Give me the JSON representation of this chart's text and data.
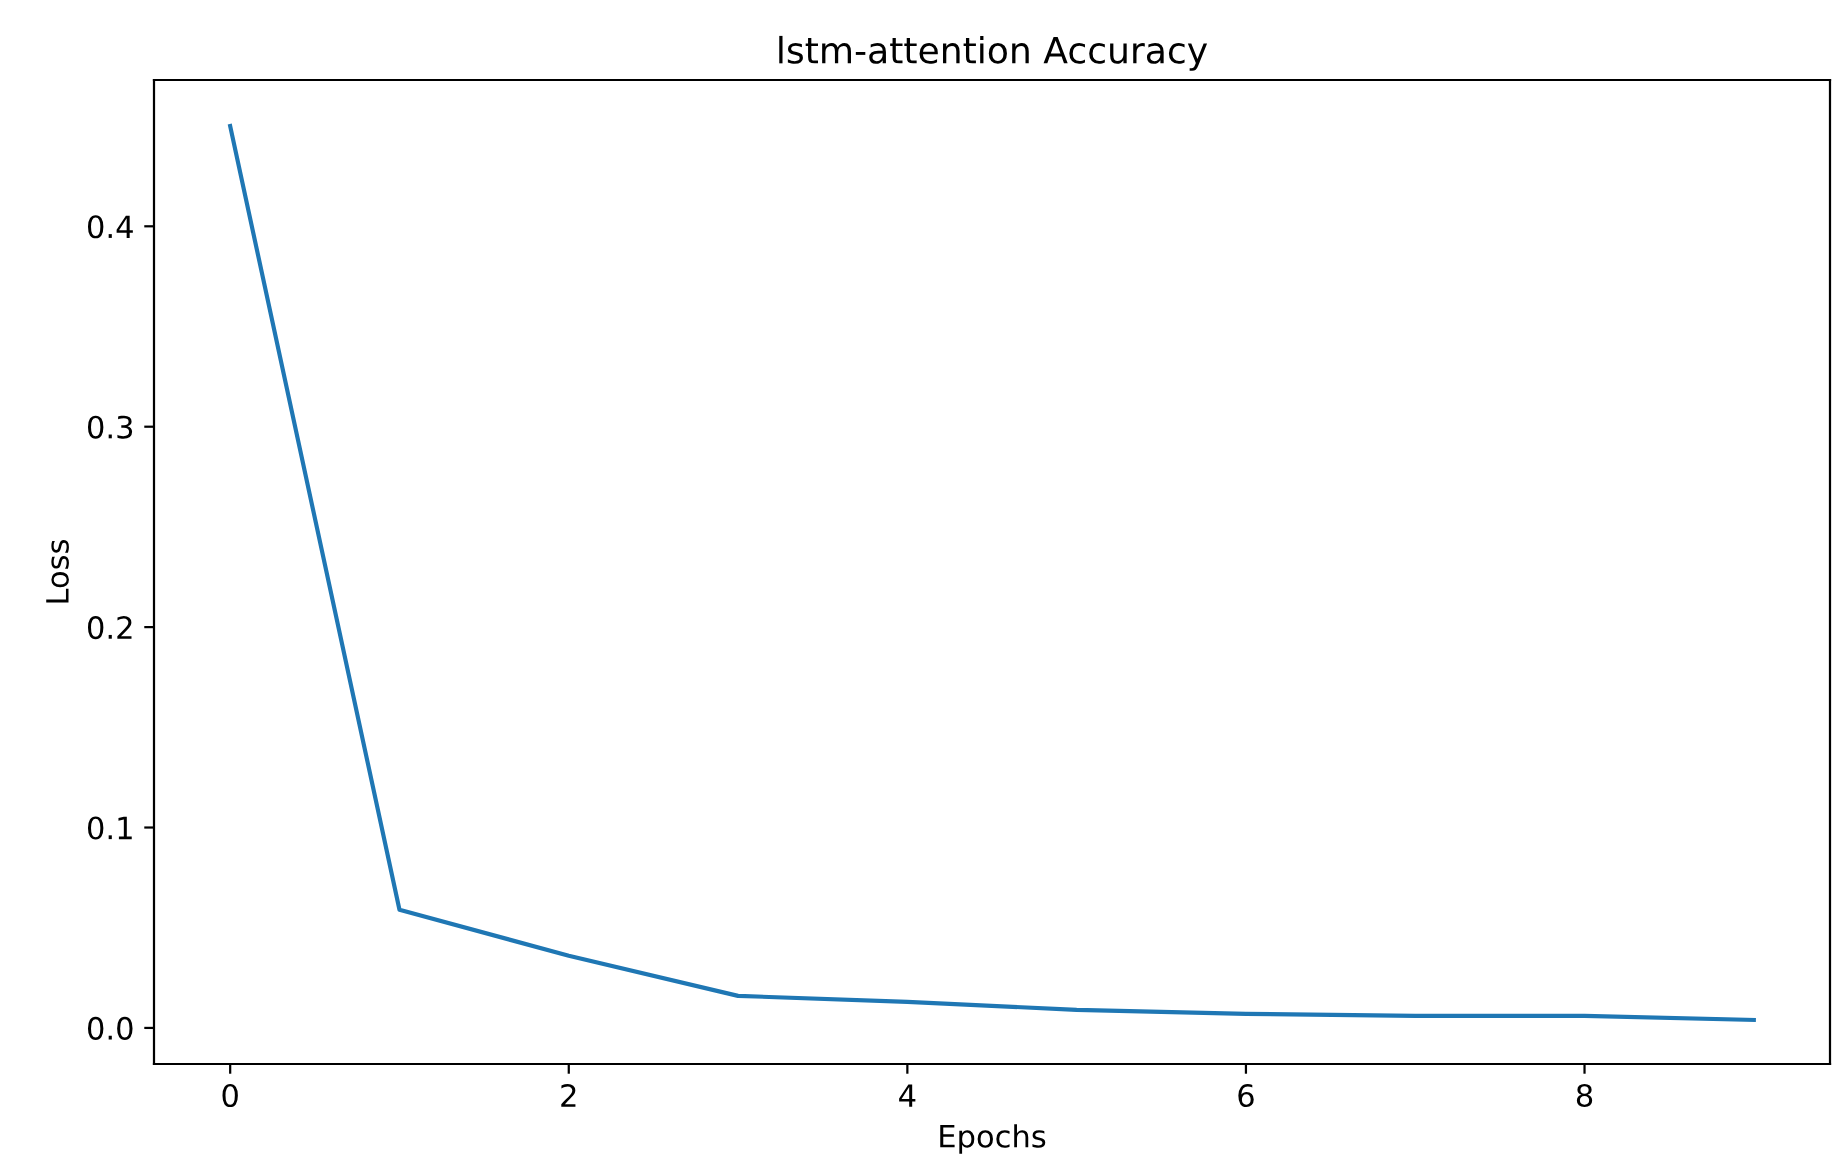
{
  "chart_data": {
    "type": "line",
    "title": "lstm-attention Accuracy",
    "xlabel": "Epochs",
    "ylabel": "Loss",
    "x": [
      0,
      1,
      2,
      3,
      4,
      5,
      6,
      7,
      8,
      9
    ],
    "series": [
      {
        "color": "#1f77b4",
        "values": [
          0.45,
          0.059,
          0.036,
          0.016,
          0.013,
          0.009,
          0.007,
          0.006,
          0.006,
          0.004
        ]
      }
    ],
    "xlim": [
      -0.45,
      9.45
    ],
    "ylim": [
      -0.018,
      0.473
    ],
    "xticks": [
      0,
      2,
      4,
      6,
      8
    ],
    "yticks": [
      {
        "value": 0,
        "label": "0.0"
      },
      0.1,
      0.2,
      0.3,
      0.4
    ],
    "grid": false,
    "legend": false,
    "marker": "none",
    "line_style": "solid"
  }
}
